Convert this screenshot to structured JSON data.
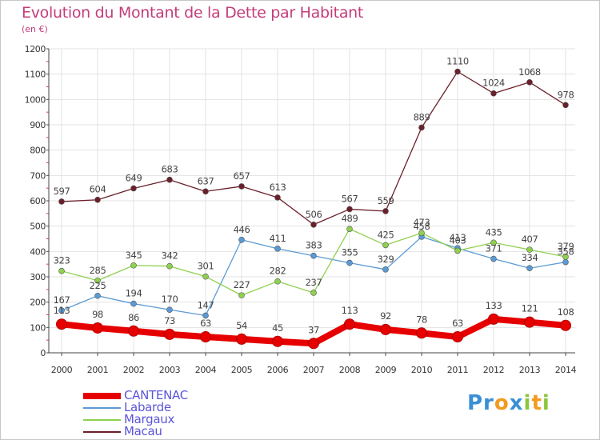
{
  "title": "Evolution du Montant de la Dette par Habitant",
  "subtitle": "(en €)",
  "brand": {
    "text": "Proxiti",
    "colors": [
      "#3a8fd6",
      "#f29b1e",
      "#8cc63f"
    ]
  },
  "chart_data": {
    "type": "line",
    "title": "Evolution du Montant de la Dette par Habitant",
    "ylabel": "(en €)",
    "xlabel": "",
    "x": [
      "2000",
      "2001",
      "2002",
      "2003",
      "2004",
      "2005",
      "2006",
      "2007",
      "2008",
      "2009",
      "2010",
      "2011",
      "2012",
      "2013",
      "2014"
    ],
    "ylim": [
      0,
      1200
    ],
    "yticks": [
      0,
      100,
      200,
      300,
      400,
      500,
      600,
      700,
      800,
      900,
      1000,
      1100,
      1200
    ],
    "grid": true,
    "legend": "bottom-left",
    "series": [
      {
        "name": "CANTENAC",
        "color": "#e60000",
        "values": [
          113,
          98,
          86,
          73,
          63,
          54,
          45,
          37,
          113,
          92,
          78,
          63,
          133,
          121,
          108
        ]
      },
      {
        "name": "Labarde",
        "color": "#5b9bd5",
        "values": [
          167,
          225,
          194,
          170,
          147,
          446,
          411,
          383,
          355,
          329,
          458,
          413,
          371,
          334,
          358
        ]
      },
      {
        "name": "Margaux",
        "color": "#8fd14f",
        "values": [
          323,
          285,
          345,
          342,
          301,
          227,
          282,
          237,
          489,
          425,
          473,
          403,
          435,
          407,
          379
        ]
      },
      {
        "name": "Macau",
        "color": "#6b1f2a",
        "values": [
          597,
          604,
          649,
          683,
          637,
          657,
          613,
          506,
          567,
          559,
          889,
          1110,
          1024,
          1068,
          978
        ]
      }
    ]
  }
}
